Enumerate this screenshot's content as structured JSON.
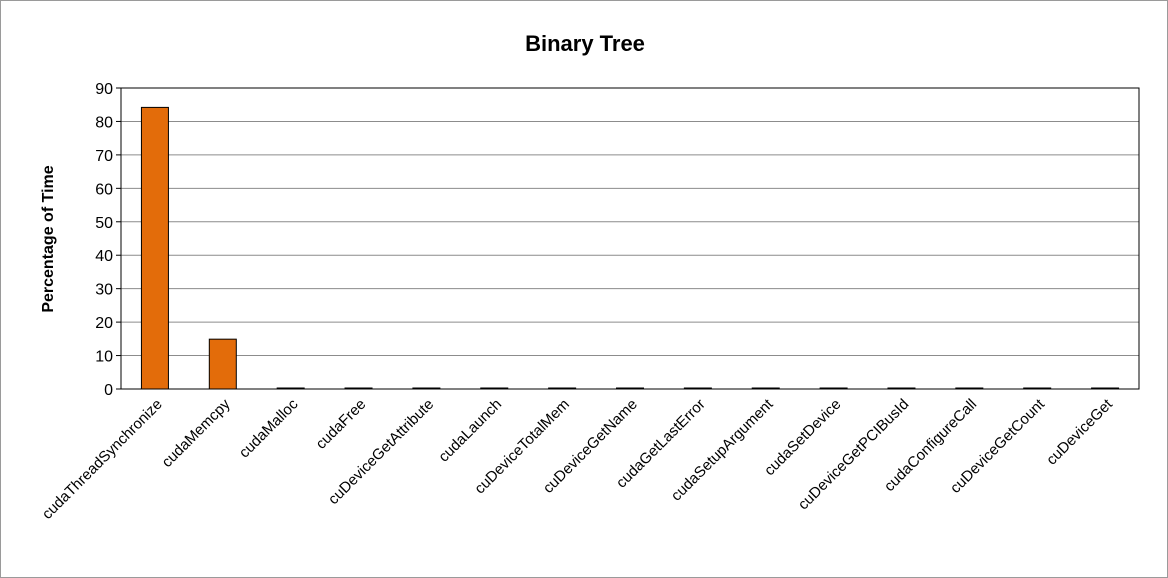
{
  "chart_data": {
    "type": "bar",
    "title": "Binary Tree",
    "xlabel": "",
    "ylabel": "Percentage of Time",
    "ylim": [
      0,
      90
    ],
    "yticks": [
      0,
      10,
      20,
      30,
      40,
      50,
      60,
      70,
      80,
      90
    ],
    "grid": true,
    "legend": "none",
    "bar_color": "#e36c0a",
    "categories": [
      "cudaThreadSynchronize",
      "cudaMemcpy",
      "cudaMalloc",
      "cudaFree",
      "cuDeviceGetAttribute",
      "cudaLaunch",
      "cuDeviceTotalMem",
      "cuDeviceGetName",
      "cudaGetLastError",
      "cudaSetupArgument",
      "cudaSetDevice",
      "cuDeviceGetPCIBusId",
      "cudaConfigureCall",
      "cuDeviceGetCount",
      "cuDeviceGet"
    ],
    "values": [
      84.2,
      14.9,
      0.3,
      0.3,
      0.3,
      0.3,
      0.3,
      0.3,
      0.3,
      0.3,
      0.3,
      0.3,
      0.3,
      0.3,
      0.3
    ]
  }
}
